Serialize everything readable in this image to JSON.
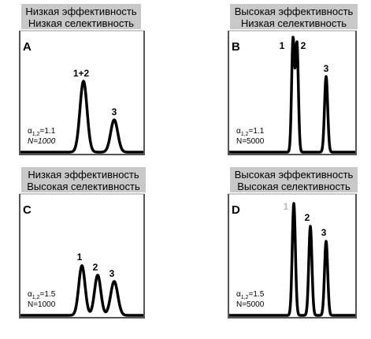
{
  "panels": [
    {
      "title": [
        "Низкая эффективность",
        "Низкая селективность"
      ],
      "letter": "A",
      "peak_labels": [
        "1+2",
        "3"
      ],
      "alpha": "α",
      "alpha_subscript": "1,2",
      "alpha_value": "=1.1",
      "n_label": "N=1000"
    },
    {
      "title": [
        "Высокая эффективность",
        "Низкая селективность"
      ],
      "letter": "B",
      "peak_labels": [
        "1",
        "2",
        "3"
      ],
      "alpha": "α",
      "alpha_subscript": "1,2",
      "alpha_value": "=1.1",
      "n_label": "N=5000"
    },
    {
      "title": [
        "Низкая эффективность",
        "Высокая селективность"
      ],
      "letter": "C",
      "peak_labels": [
        "1",
        "2",
        "3"
      ],
      "alpha": "α",
      "alpha_subscript": "1,2",
      "alpha_value": "=1.5",
      "n_label": "N=1000"
    },
    {
      "title": [
        "Высокая эффективность",
        "Высокая селективность"
      ],
      "letter": "D",
      "peak_labels": [
        "1",
        "2",
        "3"
      ],
      "alpha": "α",
      "alpha_subscript": "1,2",
      "alpha_value": "=1.5",
      "n_label": "N=5000"
    }
  ]
}
